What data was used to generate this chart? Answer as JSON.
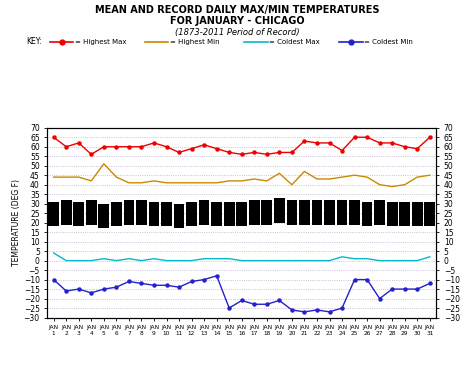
{
  "title_line1": "MEAN AND RECORD DAILY MAX/MIN TEMPERATURES",
  "title_line2": "FOR JANUARY - CHICAGO",
  "title_line3": "(1873-2011 Period of Record)",
  "days": [
    1,
    2,
    3,
    4,
    5,
    6,
    7,
    8,
    9,
    10,
    11,
    12,
    13,
    14,
    15,
    16,
    17,
    18,
    19,
    20,
    21,
    22,
    23,
    24,
    25,
    26,
    27,
    28,
    29,
    30,
    31
  ],
  "highest_max": [
    65,
    60,
    62,
    56,
    60,
    60,
    60,
    60,
    62,
    60,
    57,
    59,
    61,
    59,
    57,
    56,
    57,
    56,
    57,
    57,
    63,
    62,
    62,
    58,
    65,
    65,
    62,
    62,
    60,
    59,
    65
  ],
  "highest_min": [
    44,
    44,
    44,
    42,
    51,
    44,
    41,
    41,
    42,
    41,
    41,
    41,
    41,
    41,
    42,
    42,
    43,
    42,
    46,
    40,
    47,
    43,
    43,
    44,
    45,
    44,
    40,
    39,
    40,
    44,
    45
  ],
  "coldest_max": [
    4,
    0,
    0,
    0,
    1,
    0,
    1,
    0,
    1,
    0,
    0,
    0,
    1,
    1,
    1,
    0,
    0,
    0,
    0,
    0,
    0,
    0,
    0,
    2,
    1,
    1,
    0,
    0,
    0,
    0,
    2
  ],
  "coldest_min": [
    -10,
    -16,
    -15,
    -17,
    -15,
    -14,
    -11,
    -12,
    -13,
    -13,
    -14,
    -11,
    -10,
    -8,
    -25,
    -21,
    -23,
    -23,
    -21,
    -26,
    -27,
    -26,
    -27,
    -25,
    -10,
    -10,
    -20,
    -15,
    -15,
    -15,
    -12
  ],
  "bar_top": [
    31,
    32,
    31,
    32,
    30,
    31,
    32,
    32,
    31,
    31,
    30,
    31,
    32,
    31,
    31,
    31,
    32,
    32,
    33,
    32,
    32,
    32,
    32,
    32,
    32,
    31,
    32,
    31,
    31,
    31,
    31
  ],
  "bar_bottom": [
    18,
    19,
    18,
    19,
    17,
    18,
    19,
    19,
    18,
    18,
    17,
    18,
    19,
    18,
    18,
    18,
    19,
    19,
    20,
    19,
    19,
    19,
    19,
    19,
    19,
    18,
    19,
    18,
    18,
    18,
    18
  ],
  "ylim": [
    -30,
    70
  ],
  "yticks": [
    -30,
    -25,
    -20,
    -15,
    -10,
    -5,
    0,
    5,
    10,
    15,
    20,
    25,
    30,
    35,
    40,
    45,
    50,
    55,
    60,
    65,
    70
  ],
  "grid_color": "#bbaacc",
  "background_color": "#ffffff",
  "bar_color": "#000000",
  "highest_max_color": "#ee0000",
  "highest_min_color": "#cc8800",
  "coldest_max_color": "#00bbcc",
  "coldest_min_color": "#2222cc"
}
